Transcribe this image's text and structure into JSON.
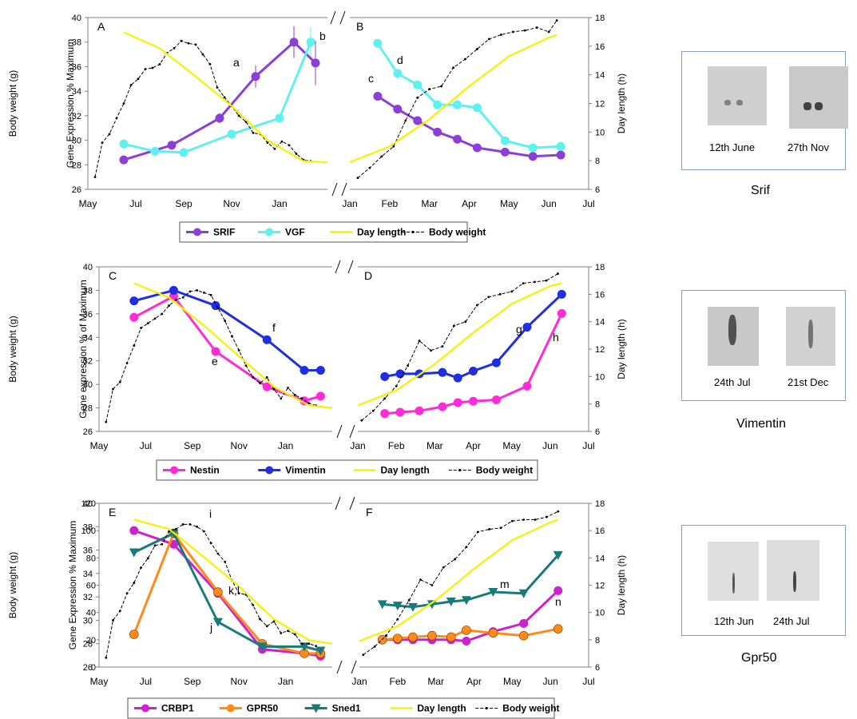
{
  "months_left": [
    "May",
    "Jul",
    "Sep",
    "Nov",
    "Jan"
  ],
  "months_right": [
    "Jan",
    "Feb",
    "Mar",
    "Apr",
    "May",
    "Jun",
    "Jul"
  ],
  "axis_labels": {
    "body_weight": "Body weight (g)",
    "day_length": "Day length (h)",
    "gene_A": "Gene Expression % Maximum",
    "gene_C": "Gene expression % of Maximum",
    "gene_E": "Gene Expression % Maximum"
  },
  "colors": {
    "srif": "#8b3fd6",
    "vgf": "#5ff0f0",
    "day": "#f5f200",
    "body": "#000000",
    "nestin": "#ff2bd6",
    "vimentin": "#1e2ee0",
    "crbp1": "#cc22cc",
    "gpr50": "#ff8a1a",
    "sned1": "#1a7a7a",
    "frame": "#808080"
  },
  "legends": [
    {
      "items": [
        "SRIF",
        "VGF",
        "Day length",
        "Body weight"
      ]
    },
    {
      "items": [
        "Nestin",
        "Vimentin",
        "Day length",
        "Body weight"
      ]
    },
    {
      "items": [
        "CRBP1",
        "GPR50",
        "Sned1",
        "Day length",
        "Body weight"
      ]
    }
  ],
  "thumbnails": [
    {
      "gene": "Srif",
      "labels": [
        "12th June",
        "27th Nov"
      ]
    },
    {
      "gene": "Vimentin",
      "labels": [
        "24th Jul",
        "21st Dec"
      ]
    },
    {
      "gene": "Gpr50",
      "labels": [
        "12th Jun",
        "24th Jul"
      ]
    }
  ],
  "chart_data": [
    {
      "panel": "A",
      "type": "line",
      "x_axis": "months May–Jan",
      "y_left": "Body weight (g)",
      "ylim_left": [
        26,
        40
      ],
      "y_right_hidden": "Gene Expression % Maximum",
      "series": [
        {
          "name": "SRIF",
          "x": [
            6.5,
            8.5,
            10.5,
            12.0,
            13.6,
            14.5
          ],
          "y": [
            28.4,
            29.6,
            31.8,
            35.2,
            38.0,
            36.3
          ],
          "err": [
            0.2,
            0.2,
            0.4,
            0.9,
            1.3,
            1.8
          ]
        },
        {
          "name": "VGF",
          "x": [
            6.5,
            7.8,
            9.0,
            11.0,
            13.0,
            14.3
          ],
          "y": [
            29.7,
            29.1,
            29.0,
            30.5,
            31.8,
            38.0
          ],
          "err": [
            0.4,
            0.3,
            0.2,
            0.3,
            0.3,
            1.2
          ]
        },
        {
          "name": "Body weight",
          "x": [
            5.3,
            5.6,
            5.9,
            6.2,
            6.5,
            6.8,
            7.1,
            7.4,
            7.7,
            8.0,
            8.3,
            8.6,
            8.9,
            9.2,
            9.5,
            9.8,
            10.1,
            10.4,
            10.7,
            11.0,
            11.3,
            11.6,
            11.9,
            12.2,
            12.5,
            12.8,
            13.1,
            13.4,
            13.7,
            14.0,
            14.3
          ],
          "y": [
            27.0,
            29.8,
            30.5,
            31.8,
            33.0,
            34.5,
            35.0,
            35.8,
            35.9,
            36.2,
            37.1,
            37.5,
            38.1,
            37.9,
            37.8,
            37.0,
            36.2,
            34.3,
            33.5,
            32.8,
            32.0,
            31.5,
            30.6,
            30.5,
            29.8,
            29.3,
            29.9,
            29.6,
            28.9,
            28.4,
            28.3
          ]
        },
        {
          "name": "Day length",
          "x": [
            6.5,
            8.0,
            9.5,
            11.0,
            12.5,
            14.0,
            15.0
          ],
          "y": [
            38.8,
            37.5,
            35.2,
            32.8,
            30.0,
            28.3,
            28.2
          ]
        }
      ],
      "annotations": [
        "a",
        "b"
      ]
    },
    {
      "panel": "B",
      "type": "line",
      "x_axis": "months Jan–Jul",
      "y_right": "Day length (h)",
      "ylim_right": [
        6,
        18
      ],
      "series": [
        {
          "name": "SRIF",
          "x": [
            1.7,
            2.2,
            2.7,
            3.2,
            3.7,
            4.2,
            4.9,
            5.6,
            6.3
          ],
          "y": [
            12.5,
            11.6,
            10.8,
            10.0,
            9.5,
            8.9,
            8.6,
            8.3,
            8.4
          ]
        },
        {
          "name": "VGF",
          "x": [
            1.7,
            2.2,
            2.7,
            3.2,
            3.7,
            4.2,
            4.9,
            5.6,
            6.3
          ],
          "y": [
            16.2,
            14.1,
            13.3,
            11.9,
            11.9,
            11.7,
            9.4,
            8.9,
            9.0
          ]
        },
        {
          "name": "Body weight",
          "x": [
            1.2,
            1.5,
            1.8,
            2.1,
            2.4,
            2.7,
            3.0,
            3.3,
            3.6,
            3.9,
            4.2,
            4.5,
            4.8,
            5.1,
            5.4,
            5.7,
            6.0,
            6.2
          ],
          "y": [
            6.8,
            7.5,
            8.3,
            9.0,
            10.8,
            12.4,
            13.0,
            13.2,
            14.5,
            15.1,
            15.8,
            16.5,
            16.8,
            17.0,
            17.1,
            17.3,
            17.0,
            17.8
          ]
        },
        {
          "name": "Day length",
          "x": [
            1.0,
            2.0,
            3.0,
            4.0,
            5.0,
            6.0,
            6.2
          ],
          "y": [
            7.9,
            9.0,
            10.9,
            13.2,
            15.3,
            16.6,
            16.8
          ]
        }
      ],
      "annotations": [
        "c",
        "d"
      ]
    },
    {
      "panel": "C",
      "type": "line",
      "ylim_left": [
        26,
        40
      ],
      "series": [
        {
          "name": "Nestin",
          "x": [
            6.5,
            8.2,
            10.0,
            12.2,
            13.8,
            14.5
          ],
          "y": [
            35.7,
            37.5,
            32.8,
            29.8,
            28.6,
            29.0
          ]
        },
        {
          "name": "Vimentin",
          "x": [
            6.5,
            8.2,
            10.0,
            12.2,
            13.8,
            14.5
          ],
          "y": [
            37.1,
            38.0,
            36.7,
            33.8,
            31.2,
            31.2
          ]
        },
        {
          "name": "Body weight",
          "x": [
            5.3,
            5.6,
            5.9,
            6.2,
            6.5,
            6.8,
            7.1,
            7.4,
            7.7,
            8.0,
            8.3,
            8.6,
            8.9,
            9.2,
            9.5,
            9.8,
            10.1,
            10.4,
            10.7,
            11.0,
            11.3,
            11.6,
            11.9,
            12.2,
            12.5,
            12.8,
            13.1,
            13.4,
            13.7,
            14.0,
            14.3
          ],
          "y": [
            26.8,
            29.6,
            30.2,
            31.8,
            33.3,
            34.8,
            35.2,
            35.6,
            36.0,
            36.7,
            37.2,
            37.4,
            37.9,
            38.0,
            37.8,
            37.6,
            36.5,
            35.4,
            34.1,
            32.9,
            31.6,
            30.6,
            30.1,
            30.6,
            29.6,
            28.8,
            29.7,
            29.1,
            28.8,
            28.4,
            28.2
          ]
        },
        {
          "name": "Day length",
          "x": [
            6.5,
            8.0,
            9.5,
            11.0,
            12.5,
            14.0,
            15.0
          ],
          "y": [
            38.6,
            37.4,
            35.0,
            32.4,
            29.8,
            28.2,
            28.0
          ]
        }
      ],
      "annotations": [
        "e",
        "f"
      ]
    },
    {
      "panel": "D",
      "type": "line",
      "ylim_right": [
        6,
        18
      ],
      "series": [
        {
          "name": "Nestin",
          "x": [
            1.7,
            2.1,
            2.6,
            3.2,
            3.6,
            4.0,
            4.6,
            5.4,
            6.3
          ],
          "y": [
            7.3,
            7.4,
            7.5,
            7.8,
            8.1,
            8.2,
            8.3,
            9.3,
            14.6
          ]
        },
        {
          "name": "Vimentin",
          "x": [
            1.7,
            2.1,
            2.6,
            3.2,
            3.6,
            4.0,
            4.6,
            5.4,
            6.3
          ],
          "y": [
            10.0,
            10.2,
            10.2,
            10.3,
            9.9,
            10.4,
            11.0,
            13.6,
            16.0
          ]
        },
        {
          "name": "Body weight",
          "x": [
            1.1,
            1.4,
            1.7,
            2.0,
            2.3,
            2.6,
            2.9,
            3.2,
            3.5,
            3.8,
            4.1,
            4.4,
            4.7,
            5.0,
            5.3,
            5.6,
            5.9,
            6.2
          ],
          "y": [
            6.8,
            7.5,
            8.4,
            9.3,
            10.8,
            12.6,
            11.9,
            12.2,
            13.7,
            14.0,
            15.2,
            15.8,
            16.0,
            16.2,
            16.8,
            16.9,
            17.0,
            17.5
          ]
        },
        {
          "name": "Day length",
          "x": [
            1.0,
            2.0,
            3.0,
            4.0,
            5.0,
            6.0,
            6.3
          ],
          "y": [
            7.9,
            9.0,
            10.9,
            13.2,
            15.3,
            16.6,
            16.8
          ]
        }
      ],
      "annotations": [
        "g",
        "h"
      ]
    },
    {
      "panel": "E",
      "type": "line",
      "y_right_hidden_label": "Gene Expression % Maximum",
      "ylim_gene": [
        0,
        120
      ],
      "ylim_left": [
        26,
        40
      ],
      "gene_ticks": [
        "0",
        "20",
        "40",
        "60",
        "80",
        "100",
        "120"
      ],
      "series": [
        {
          "name": "CRBP1",
          "x": [
            6.5,
            8.2,
            10.1,
            12.0,
            13.8,
            14.5
          ],
          "y": [
            100,
            90,
            54,
            13,
            10,
            8
          ]
        },
        {
          "name": "GPR50",
          "x": [
            6.5,
            8.2,
            10.1,
            12.0,
            13.8,
            14.5
          ],
          "y": [
            24,
            98,
            55,
            17,
            10,
            10
          ]
        },
        {
          "name": "Sned1",
          "x": [
            6.5,
            8.2,
            10.1,
            12.0,
            13.8,
            14.5
          ],
          "y": [
            84,
            98,
            33,
            15,
            15,
            12
          ]
        },
        {
          "name": "Body weight",
          "x": [
            5.3,
            5.6,
            5.9,
            6.2,
            6.5,
            6.8,
            7.1,
            7.4,
            7.7,
            8.0,
            8.3,
            8.6,
            8.9,
            9.2,
            9.5,
            9.8,
            10.1,
            10.4,
            10.7,
            11.0,
            11.3,
            11.6,
            11.9,
            12.2,
            12.5,
            12.8,
            13.1,
            13.4,
            13.7,
            14.0,
            14.3
          ],
          "y": [
            26.8,
            30.0,
            30.8,
            32.3,
            33.2,
            34.5,
            35.3,
            36.4,
            36.5,
            37.6,
            37.8,
            38.2,
            38.2,
            38.0,
            37.6,
            36.6,
            35.7,
            35.0,
            33.4,
            32.3,
            32.2,
            31.3,
            30.1,
            29.5,
            29.9,
            28.9,
            29.1,
            28.8,
            28.0,
            28.0,
            27.8
          ]
        },
        {
          "name": "Day length",
          "x": [
            6.5,
            8.0,
            9.5,
            11.0,
            12.5,
            14.0,
            15.0
          ],
          "y": [
            38.6,
            37.8,
            35.4,
            32.9,
            30.1,
            28.3,
            28.0
          ]
        }
      ],
      "annotations": [
        "i",
        "j",
        "k,l"
      ]
    },
    {
      "panel": "F",
      "type": "line",
      "ylim_right": [
        6,
        18
      ],
      "series": [
        {
          "name": "CRBP1",
          "x": [
            1.6,
            2.0,
            2.4,
            2.9,
            3.4,
            3.8,
            4.5,
            5.3,
            6.2
          ],
          "y": [
            8.0,
            8.0,
            8.0,
            8.0,
            8.0,
            7.9,
            8.6,
            9.2,
            11.6
          ]
        },
        {
          "name": "GPR50",
          "x": [
            1.6,
            2.0,
            2.4,
            2.9,
            3.4,
            3.8,
            4.5,
            5.3,
            6.2
          ],
          "y": [
            8.0,
            8.1,
            8.2,
            8.3,
            8.2,
            8.7,
            8.5,
            8.3,
            8.8
          ]
        },
        {
          "name": "Sned1",
          "x": [
            1.6,
            2.0,
            2.4,
            2.9,
            3.4,
            3.8,
            4.5,
            5.3,
            6.2
          ],
          "y": [
            10.6,
            10.5,
            10.4,
            10.6,
            10.8,
            10.9,
            11.5,
            11.4,
            14.2
          ]
        },
        {
          "name": "Body weight",
          "x": [
            1.1,
            1.4,
            1.7,
            2.0,
            2.3,
            2.6,
            2.9,
            3.2,
            3.5,
            3.8,
            4.1,
            4.4,
            4.7,
            5.0,
            5.3,
            5.6,
            5.9,
            6.2
          ],
          "y": [
            6.9,
            7.5,
            8.3,
            9.5,
            10.9,
            12.4,
            12.0,
            13.3,
            13.9,
            14.8,
            15.9,
            16.1,
            16.2,
            16.7,
            16.8,
            16.8,
            17.0,
            17.4
          ]
        },
        {
          "name": "Day length",
          "x": [
            1.0,
            2.0,
            3.0,
            4.0,
            5.0,
            6.0,
            6.2
          ],
          "y": [
            7.9,
            9.0,
            10.9,
            13.2,
            15.3,
            16.6,
            16.8
          ]
        }
      ],
      "annotations": [
        "m",
        "n"
      ]
    }
  ]
}
